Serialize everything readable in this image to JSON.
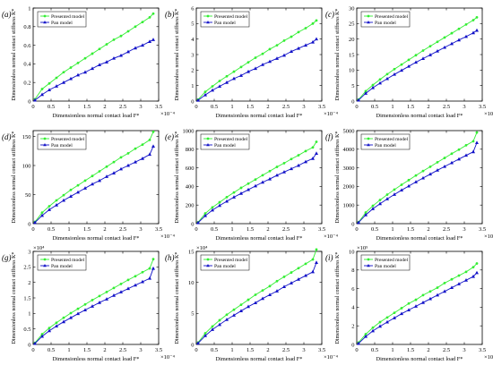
{
  "figure": {
    "background": "#ffffff",
    "presented_color": "#33ee33",
    "pan_color": "#1010c8"
  },
  "chart_data": [
    {
      "type": "line",
      "panel_label": "(a)",
      "xlabel": "Dimensionless normal contact load F*",
      "ylabel": "Dimensionless normal contact stiffness K*",
      "xlim": [
        0,
        3.5
      ],
      "ylim": [
        0,
        1
      ],
      "xticks": [
        "0",
        "0.5",
        "1",
        "1.5",
        "2",
        "2.5",
        "3",
        "3.5"
      ],
      "xticks_v": [
        0,
        0.5,
        1,
        1.5,
        2,
        2.5,
        3,
        3.5
      ],
      "yticks": [
        "0",
        "0.2",
        "0.4",
        "0.6",
        "0.8",
        "1"
      ],
      "yticks_v": [
        0,
        0.2,
        0.4,
        0.6,
        0.8,
        1
      ],
      "x_exponent": "×10⁻⁴",
      "y_exponent": "",
      "legend": "top-left",
      "x": [
        0.05,
        0.25,
        0.45,
        0.65,
        0.85,
        1.05,
        1.25,
        1.45,
        1.65,
        1.85,
        2.05,
        2.25,
        2.45,
        2.65,
        2.85,
        3.05,
        3.25,
        3.35
      ],
      "series": [
        {
          "name": "Presented model",
          "values": [
            0.02,
            0.13,
            0.19,
            0.25,
            0.31,
            0.36,
            0.41,
            0.46,
            0.51,
            0.56,
            0.61,
            0.66,
            0.7,
            0.75,
            0.8,
            0.85,
            0.9,
            0.94
          ]
        },
        {
          "name": "Pan model",
          "values": [
            0.01,
            0.07,
            0.12,
            0.16,
            0.2,
            0.24,
            0.28,
            0.31,
            0.35,
            0.39,
            0.42,
            0.46,
            0.49,
            0.53,
            0.57,
            0.6,
            0.64,
            0.66
          ]
        }
      ]
    },
    {
      "type": "line",
      "panel_label": "(b)",
      "xlabel": "Dimensionless normal contact load F*",
      "ylabel": "Dimensionless normal contact stiffness K*",
      "xlim": [
        0,
        3.5
      ],
      "ylim": [
        0,
        6
      ],
      "xticks": [
        "0",
        "0.5",
        "1",
        "1.5",
        "2",
        "2.5",
        "3",
        "3.5"
      ],
      "xticks_v": [
        0,
        0.5,
        1,
        1.5,
        2,
        2.5,
        3,
        3.5
      ],
      "yticks": [
        "0",
        "1",
        "2",
        "3",
        "4",
        "5",
        "6"
      ],
      "yticks_v": [
        0,
        1,
        2,
        3,
        4,
        5,
        6
      ],
      "x_exponent": "×10⁻⁴",
      "y_exponent": "",
      "legend": "top-left",
      "x": [
        0.05,
        0.25,
        0.45,
        0.65,
        0.85,
        1.05,
        1.25,
        1.45,
        1.65,
        1.85,
        2.05,
        2.25,
        2.45,
        2.65,
        2.85,
        3.05,
        3.25,
        3.35
      ],
      "series": [
        {
          "name": "Presented model",
          "values": [
            0.1,
            0.6,
            0.95,
            1.3,
            1.6,
            1.9,
            2.2,
            2.5,
            2.8,
            3.05,
            3.35,
            3.6,
            3.9,
            4.15,
            4.45,
            4.7,
            5.0,
            5.2
          ]
        },
        {
          "name": "Pan model",
          "values": [
            0.05,
            0.4,
            0.7,
            0.95,
            1.2,
            1.45,
            1.65,
            1.9,
            2.1,
            2.35,
            2.55,
            2.75,
            2.95,
            3.2,
            3.4,
            3.6,
            3.8,
            4.0
          ]
        }
      ]
    },
    {
      "type": "line",
      "panel_label": "(c)",
      "xlabel": "Dimensionless normal contact load F*",
      "ylabel": "Dimensionless normal contact stiffness K*",
      "xlim": [
        0,
        3.5
      ],
      "ylim": [
        0,
        30
      ],
      "xticks": [
        "0",
        "0.5",
        "1",
        "1.5",
        "2",
        "2.5",
        "3",
        "3.5"
      ],
      "xticks_v": [
        0,
        0.5,
        1,
        1.5,
        2,
        2.5,
        3,
        3.5
      ],
      "yticks": [
        "0",
        "5",
        "10",
        "15",
        "20",
        "25",
        "30"
      ],
      "yticks_v": [
        0,
        5,
        10,
        15,
        20,
        25,
        30
      ],
      "x_exponent": "×10⁻⁴",
      "y_exponent": "",
      "legend": "top-left",
      "x": [
        0.05,
        0.25,
        0.45,
        0.65,
        0.85,
        1.05,
        1.25,
        1.45,
        1.65,
        1.85,
        2.05,
        2.25,
        2.45,
        2.65,
        2.85,
        3.05,
        3.25,
        3.35
      ],
      "series": [
        {
          "name": "Presented model",
          "values": [
            0.5,
            3.2,
            5.2,
            7.0,
            8.7,
            10.3,
            11.8,
            13.3,
            14.8,
            16.3,
            17.7,
            19.1,
            20.5,
            21.9,
            23.3,
            24.7,
            26.1,
            27.0
          ]
        },
        {
          "name": "Pan model",
          "values": [
            0.3,
            2.5,
            4.3,
            5.8,
            7.2,
            8.6,
            9.9,
            11.2,
            12.5,
            13.7,
            14.9,
            16.1,
            17.3,
            18.5,
            19.7,
            20.8,
            22.0,
            22.8
          ]
        }
      ]
    },
    {
      "type": "line",
      "panel_label": "(d)",
      "xlabel": "Dimensionless normal contact load F*",
      "ylabel": "Dimensionless normal contact stiffness K*",
      "xlim": [
        0,
        3.5
      ],
      "ylim": [
        0,
        160
      ],
      "xticks": [
        "0",
        "0.5",
        "1",
        "1.5",
        "2",
        "2.5",
        "3",
        "3.5"
      ],
      "xticks_v": [
        0,
        0.5,
        1,
        1.5,
        2,
        2.5,
        3,
        3.5
      ],
      "yticks": [
        "0",
        "50",
        "100",
        "150"
      ],
      "yticks_v": [
        0,
        50,
        100,
        150
      ],
      "x_exponent": "×10⁻⁴",
      "y_exponent": "",
      "legend": "top-left",
      "x": [
        0.05,
        0.25,
        0.45,
        0.65,
        0.85,
        1.05,
        1.25,
        1.45,
        1.65,
        1.85,
        2.05,
        2.25,
        2.45,
        2.65,
        2.85,
        3.05,
        3.25,
        3.35
      ],
      "series": [
        {
          "name": "Presented model",
          "values": [
            3,
            19,
            30,
            40,
            49,
            58,
            66,
            74,
            82,
            90,
            98,
            106,
            114,
            121,
            129,
            136,
            144,
            158
          ]
        },
        {
          "name": "Pan model",
          "values": [
            2,
            14,
            24,
            32,
            40,
            47,
            54,
            61,
            68,
            74,
            81,
            87,
            94,
            100,
            106,
            112,
            119,
            133
          ]
        }
      ]
    },
    {
      "type": "line",
      "panel_label": "(e)",
      "xlabel": "Dimensionless normal contact load F*",
      "ylabel": "Dimensionless normal contact stiffness K*",
      "xlim": [
        0,
        3.5
      ],
      "ylim": [
        0,
        1000
      ],
      "xticks": [
        "0",
        "0.5",
        "1",
        "1.5",
        "2",
        "2.5",
        "3",
        "3.5"
      ],
      "xticks_v": [
        0,
        0.5,
        1,
        1.5,
        2,
        2.5,
        3,
        3.5
      ],
      "yticks": [
        "0",
        "200",
        "400",
        "600",
        "800",
        "1000"
      ],
      "yticks_v": [
        0,
        200,
        400,
        600,
        800,
        1000
      ],
      "x_exponent": "×10⁻⁴",
      "y_exponent": "",
      "legend": "top-left",
      "x": [
        0.05,
        0.25,
        0.45,
        0.65,
        0.85,
        1.05,
        1.25,
        1.45,
        1.65,
        1.85,
        2.05,
        2.25,
        2.45,
        2.65,
        2.85,
        3.05,
        3.25,
        3.35
      ],
      "series": [
        {
          "name": "Presented model",
          "values": [
            15,
            110,
            175,
            230,
            285,
            335,
            385,
            430,
            475,
            520,
            565,
            610,
            650,
            695,
            735,
            780,
            820,
            880
          ]
        },
        {
          "name": "Pan model",
          "values": [
            10,
            85,
            145,
            195,
            240,
            285,
            325,
            365,
            405,
            445,
            480,
            520,
            555,
            590,
            625,
            665,
            700,
            755
          ]
        }
      ]
    },
    {
      "type": "line",
      "panel_label": "(f)",
      "xlabel": "Dimensionless normal contact load F*",
      "ylabel": "Dimensionless normal contact stiffness K*",
      "xlim": [
        0,
        3.5
      ],
      "ylim": [
        0,
        5000
      ],
      "xticks": [
        "0",
        "0.5",
        "1",
        "1.5",
        "2",
        "2.5",
        "3",
        "3.5"
      ],
      "xticks_v": [
        0,
        0.5,
        1,
        1.5,
        2,
        2.5,
        3,
        3.5
      ],
      "yticks": [
        "0",
        "1000",
        "2000",
        "3000",
        "4000",
        "5000"
      ],
      "yticks_v": [
        0,
        1000,
        2000,
        3000,
        4000,
        5000
      ],
      "x_exponent": "×10⁻⁴",
      "y_exponent": "",
      "legend": "top-left",
      "x": [
        0.05,
        0.25,
        0.45,
        0.65,
        0.85,
        1.05,
        1.25,
        1.45,
        1.65,
        1.85,
        2.05,
        2.25,
        2.45,
        2.65,
        2.85,
        3.05,
        3.25,
        3.35
      ],
      "series": [
        {
          "name": "Presented model",
          "values": [
            80,
            600,
            960,
            1270,
            1560,
            1830,
            2090,
            2340,
            2590,
            2830,
            3060,
            3300,
            3530,
            3760,
            3980,
            4210,
            4430,
            4900
          ]
        },
        {
          "name": "Pan model",
          "values": [
            60,
            470,
            800,
            1070,
            1330,
            1570,
            1800,
            2020,
            2240,
            2450,
            2660,
            2870,
            3070,
            3270,
            3470,
            3670,
            3860,
            4350
          ]
        }
      ]
    },
    {
      "type": "line",
      "panel_label": "(g)",
      "xlabel": "Dimensionless normal contact load F*",
      "ylabel": "Dimensionless normal contact stiffness K*",
      "xlim": [
        0,
        3.5
      ],
      "ylim": [
        0,
        3
      ],
      "xticks": [
        "0",
        "0.5",
        "1",
        "1.5",
        "2",
        "2.5",
        "3",
        "3.5"
      ],
      "xticks_v": [
        0,
        0.5,
        1,
        1.5,
        2,
        2.5,
        3,
        3.5
      ],
      "yticks": [
        "0",
        "0.5",
        "1",
        "1.5",
        "2",
        "2.5",
        "3"
      ],
      "yticks_v": [
        0,
        0.5,
        1,
        1.5,
        2,
        2.5,
        3
      ],
      "x_exponent": "×10⁻⁴",
      "y_exponent": "×10⁴",
      "legend": "top-left",
      "x": [
        0.05,
        0.25,
        0.45,
        0.65,
        0.85,
        1.05,
        1.25,
        1.45,
        1.65,
        1.85,
        2.05,
        2.25,
        2.45,
        2.65,
        2.85,
        3.05,
        3.25,
        3.35
      ],
      "series": [
        {
          "name": "Presented model",
          "values": [
            0.05,
            0.33,
            0.53,
            0.7,
            0.86,
            1.01,
            1.15,
            1.29,
            1.43,
            1.56,
            1.69,
            1.82,
            1.95,
            2.08,
            2.2,
            2.33,
            2.45,
            2.75
          ]
        },
        {
          "name": "Pan model",
          "values": [
            0.03,
            0.26,
            0.44,
            0.59,
            0.73,
            0.86,
            0.99,
            1.11,
            1.23,
            1.35,
            1.46,
            1.58,
            1.69,
            1.8,
            1.91,
            2.02,
            2.13,
            2.45
          ]
        }
      ]
    },
    {
      "type": "line",
      "panel_label": "(h)",
      "xlabel": "Dimensionless normal contact load F*",
      "ylabel": "Dimensionless normal contact stiffness K*",
      "xlim": [
        0,
        3.5
      ],
      "ylim": [
        0,
        15
      ],
      "xticks": [
        "0",
        "0.5",
        "1",
        "1.5",
        "2",
        "2.5",
        "3",
        "3.5"
      ],
      "xticks_v": [
        0,
        0.5,
        1,
        1.5,
        2,
        2.5,
        3,
        3.5
      ],
      "yticks": [
        "0",
        "5",
        "10",
        "15"
      ],
      "yticks_v": [
        0,
        5,
        10,
        15
      ],
      "x_exponent": "×10⁻⁴",
      "y_exponent": "×10⁴",
      "legend": "top-left",
      "x": [
        0.05,
        0.25,
        0.45,
        0.65,
        0.85,
        1.05,
        1.25,
        1.45,
        1.65,
        1.85,
        2.05,
        2.25,
        2.45,
        2.65,
        2.85,
        3.05,
        3.25,
        3.35
      ],
      "series": [
        {
          "name": "Presented model",
          "values": [
            0.3,
            1.8,
            2.9,
            3.9,
            4.8,
            5.6,
            6.4,
            7.2,
            8.0,
            8.7,
            9.4,
            10.2,
            10.9,
            11.6,
            12.3,
            13.0,
            13.7,
            15.3
          ]
        },
        {
          "name": "Pan model",
          "values": [
            0.2,
            1.4,
            2.4,
            3.2,
            4.0,
            4.7,
            5.4,
            6.1,
            6.7,
            7.4,
            8.0,
            8.6,
            9.3,
            9.9,
            10.5,
            11.1,
            11.7,
            13.2
          ]
        }
      ]
    },
    {
      "type": "line",
      "panel_label": "(i)",
      "xlabel": "Dimensionless normal contact load F*",
      "ylabel": "Dimensionless normal contact stiffness K*",
      "xlim": [
        0,
        3.5
      ],
      "ylim": [
        0,
        10
      ],
      "xticks": [
        "0",
        "0.5",
        "1",
        "1.5",
        "2",
        "2.5",
        "3",
        "3.5"
      ],
      "xticks_v": [
        0,
        0.5,
        1,
        1.5,
        2,
        2.5,
        3,
        3.5
      ],
      "yticks": [
        "0",
        "2",
        "4",
        "6",
        "8",
        "10"
      ],
      "yticks_v": [
        0,
        2,
        4,
        6,
        8,
        10
      ],
      "x_exponent": "×10⁻⁴",
      "y_exponent": "×10⁵",
      "legend": "top-left",
      "x": [
        0.05,
        0.25,
        0.45,
        0.65,
        0.85,
        1.05,
        1.25,
        1.45,
        1.65,
        1.85,
        2.05,
        2.25,
        2.45,
        2.65,
        2.85,
        3.05,
        3.25,
        3.35
      ],
      "series": [
        {
          "name": "Presented model",
          "values": [
            0.2,
            1.1,
            1.8,
            2.4,
            2.9,
            3.4,
            3.9,
            4.4,
            4.8,
            5.3,
            5.7,
            6.1,
            6.6,
            7.0,
            7.4,
            7.8,
            8.3,
            8.7
          ]
        },
        {
          "name": "Pan model",
          "values": [
            0.1,
            0.85,
            1.45,
            1.95,
            2.4,
            2.85,
            3.3,
            3.7,
            4.1,
            4.5,
            4.9,
            5.3,
            5.7,
            6.1,
            6.5,
            6.9,
            7.3,
            7.7
          ]
        }
      ]
    }
  ]
}
